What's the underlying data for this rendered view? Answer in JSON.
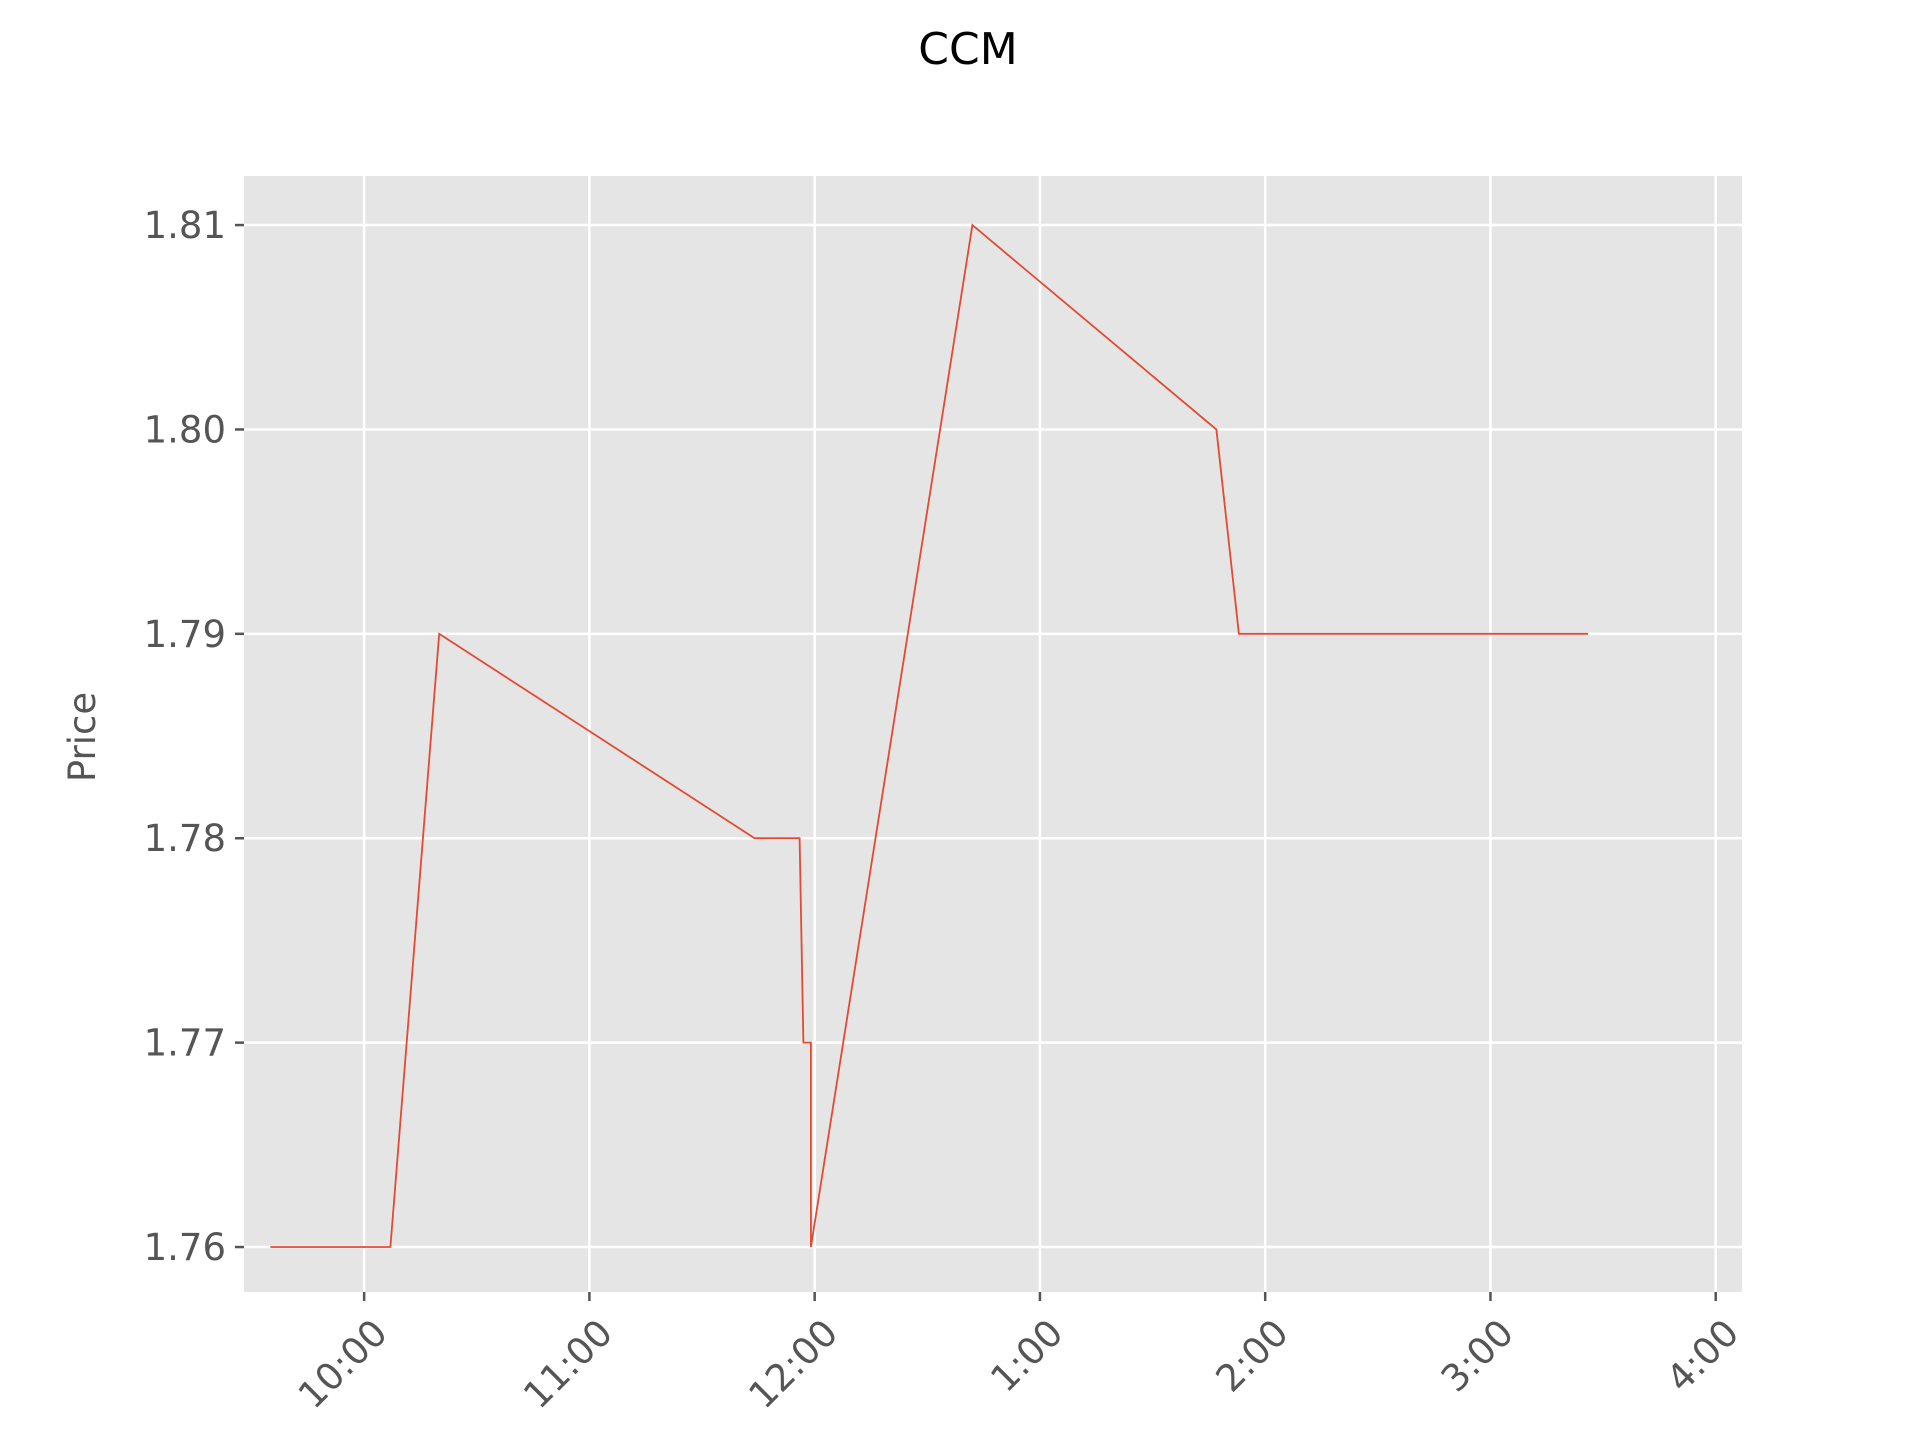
{
  "chart_data": {
    "type": "line",
    "title": "CCM",
    "xlabel": "",
    "ylabel": "Price",
    "x_ticks": [
      "10:00",
      "11:00",
      "12:00",
      "1:00",
      "2:00",
      "3:00",
      "4:00"
    ],
    "y_ticks": [
      "1.76",
      "1.77",
      "1.78",
      "1.79",
      "1.80",
      "1.81"
    ],
    "ylim": [
      1.7578,
      1.8124
    ],
    "xlim": [
      "09:28",
      "16:07"
    ],
    "grid": true,
    "legend": "none",
    "colors": {
      "background": "#E5E5E5",
      "grid": "#FFFFFF",
      "line": "#E24A33",
      "text": "#555555",
      "title": "#000000"
    },
    "series": [
      {
        "points": [
          {
            "x": "09:35",
            "y": 1.76
          },
          {
            "x": "10:07",
            "y": 1.76
          },
          {
            "x": "10:20",
            "y": 1.79
          },
          {
            "x": "11:44",
            "y": 1.78
          },
          {
            "x": "11:56",
            "y": 1.78
          },
          {
            "x": "11:57",
            "y": 1.77
          },
          {
            "x": "11:59",
            "y": 1.77
          },
          {
            "x": "11:59",
            "y": 1.76
          },
          {
            "x": "12:42",
            "y": 1.81
          },
          {
            "x": "13:47",
            "y": 1.8
          },
          {
            "x": "13:53",
            "y": 1.79
          },
          {
            "x": "15:26",
            "y": 1.79
          }
        ]
      }
    ]
  }
}
